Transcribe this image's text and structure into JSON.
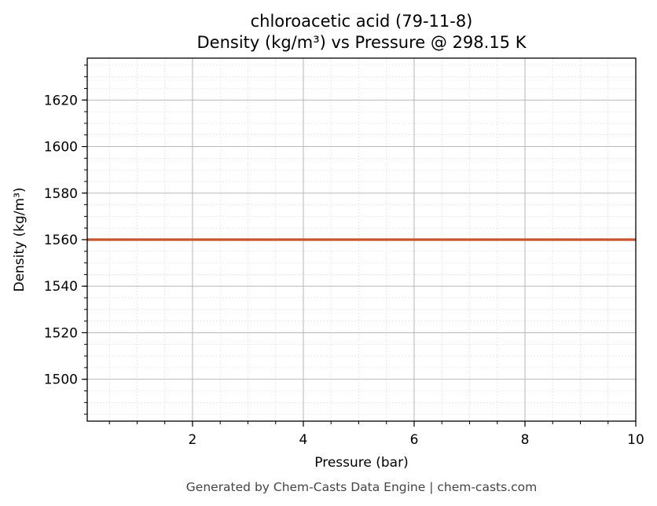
{
  "chart_data": {
    "type": "line",
    "title": "chloroacetic acid (79-11-8)",
    "subtitle": "Density (kg/m³) vs Pressure @ 298.15 K",
    "xlabel": "Pressure (bar)",
    "ylabel": "Density (kg/m³)",
    "xlim": [
      0.1,
      10
    ],
    "ylim": [
      1482,
      1638
    ],
    "xticks": [
      2,
      4,
      6,
      8,
      10
    ],
    "yticks": [
      1500,
      1520,
      1540,
      1560,
      1580,
      1600,
      1620
    ],
    "grid": true,
    "minor_grid": true,
    "series": [
      {
        "color": "#c8552d",
        "x": [
          0.1,
          1,
          2,
          3,
          4,
          5,
          6,
          7,
          8,
          9,
          10
        ],
        "y": [
          1560,
          1560,
          1560,
          1560,
          1560,
          1560,
          1560,
          1560,
          1560,
          1560,
          1560
        ]
      }
    ]
  },
  "footer": "Generated by Chem-Casts Data Engine | chem-casts.com"
}
